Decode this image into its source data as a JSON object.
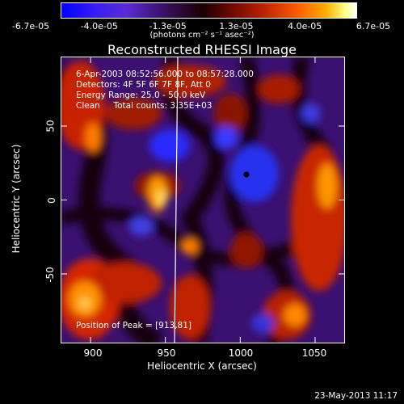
{
  "colorbar": {
    "ticks": [
      "-6.7e-05",
      "-4.0e-05",
      "-1.3e-05",
      "1.3e-05",
      "4.0e-05",
      "6.7e-05"
    ],
    "unit_label": "(photons cm⁻² s⁻¹ asec⁻²)"
  },
  "chart_data": {
    "type": "heatmap",
    "title": "Reconstructed RHESSI Image",
    "xlabel": "Heliocentric X (arcsec)",
    "ylabel": "Heliocentric Y (arcsec)",
    "xlim": [
      880,
      1070
    ],
    "ylim": [
      -97,
      97
    ],
    "xticks": [
      "900",
      "950",
      "1000",
      "1050"
    ],
    "yticks": [
      "-50",
      "0",
      "50"
    ],
    "color_range": [
      -6.7e-05,
      6.7e-05
    ],
    "annotations": {
      "line1": "6-Apr-2003 08:52:56.000 to 08:57:28.000",
      "line2": "Detectors: 4F 5F 6F 7F 8F, Att 0",
      "line3": "Energy Range: 25.0 - 50.0 keV",
      "line4": "Clean     Total counts: 3.35E+03",
      "peak": "Position of Peak = [913,81]"
    },
    "limb_line": "white vertical line near X ≈ 955 arcsec"
  },
  "footer": {
    "timestamp": "23-May-2013 11:17"
  }
}
